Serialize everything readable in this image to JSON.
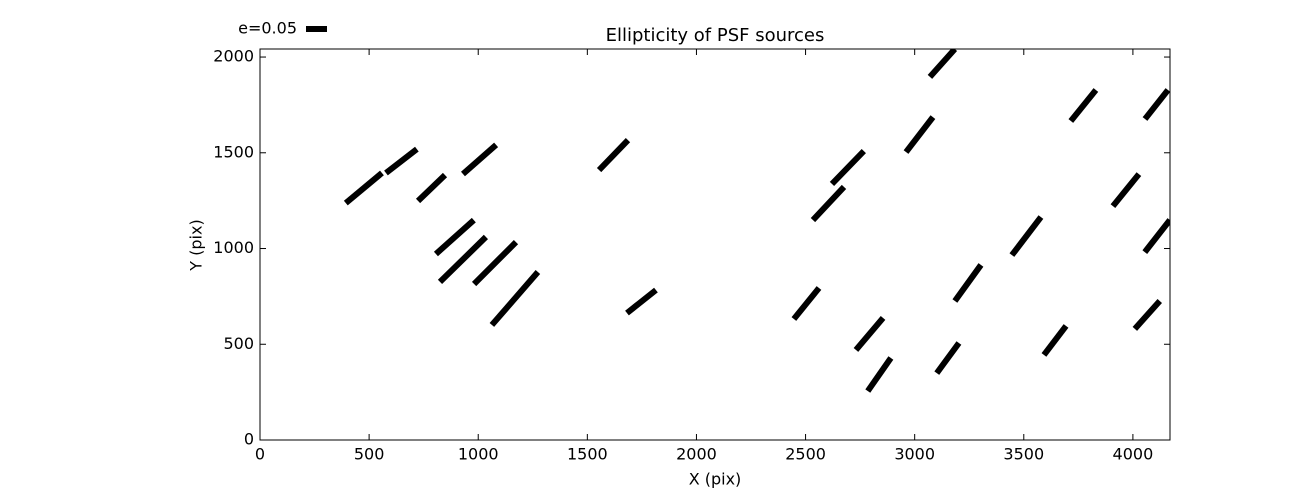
{
  "chart_data": {
    "type": "whisker",
    "title": "Ellipticity of PSF sources",
    "x_label": "X (pix)",
    "y_label": "Y (pix)",
    "color": "#000000",
    "key": {
      "value": 0.05,
      "label": "e=0.05"
    },
    "xlim": [
      0,
      4170
    ],
    "ylim": [
      0,
      2042
    ],
    "xticks": [
      0,
      500,
      1000,
      1500,
      2000,
      2500,
      3000,
      3500,
      4000
    ],
    "yticks": [
      0,
      500,
      1000,
      1500,
      2000
    ],
    "x": [
      476,
      648,
      786,
      1006,
      893,
      930,
      1077,
      1168,
      1620,
      1748,
      2504,
      2605,
      2694,
      2793,
      2838,
      3022,
      3127,
      3152,
      3244,
      3512,
      3643,
      3773,
      3968,
      4066,
      4112,
      4108
    ],
    "y": [
      1316,
      1457,
      1316,
      1465,
      1060,
      943,
      924,
      739,
      1488,
      723,
      713,
      1235,
      1423,
      554,
      342,
      1595,
      1969,
      428,
      820,
      1065,
      520,
      1747,
      1305,
      653,
      1065,
      1752
    ],
    "e": [
      0.112,
      0.093,
      0.089,
      0.105,
      0.121,
      0.153,
      0.141,
      0.167,
      0.099,
      0.088,
      0.095,
      0.108,
      0.109,
      0.1,
      0.096,
      0.105,
      0.089,
      0.089,
      0.106,
      0.114,
      0.087,
      0.095,
      0.098,
      0.089,
      0.097,
      0.088
    ],
    "angle": [
      39.8,
      37.7,
      43.9,
      41.3,
      41.8,
      44.4,
      45,
      49,
      46,
      38.4,
      51,
      46.8,
      45.9,
      49.8,
      55.1,
      52.4,
      48.2,
      53.7,
      54.2,
      52.7,
      52.8,
      51.1,
      50.9,
      48.2,
      52,
      51.6
    ]
  }
}
